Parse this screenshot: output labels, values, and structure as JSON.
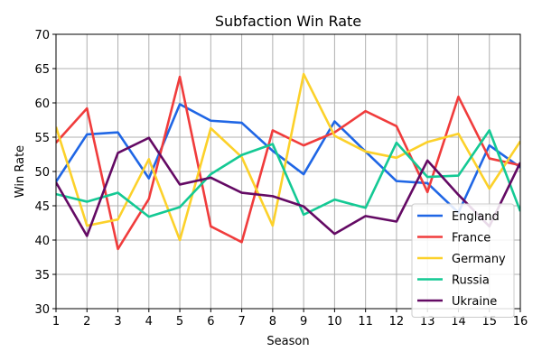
{
  "chart_data": {
    "type": "line",
    "title": "Subfaction Win Rate",
    "xlabel": "Season",
    "ylabel": "Win Rate",
    "xlim": [
      1,
      16
    ],
    "ylim": [
      30,
      70
    ],
    "x": [
      1,
      2,
      3,
      4,
      5,
      6,
      7,
      8,
      9,
      10,
      11,
      12,
      13,
      14,
      15,
      16
    ],
    "xticks": [
      "1",
      "2",
      "3",
      "4",
      "5",
      "6",
      "7",
      "8",
      "9",
      "10",
      "11",
      "12",
      "13",
      "14",
      "15",
      "16"
    ],
    "yticks": [
      30,
      35,
      40,
      45,
      50,
      55,
      60,
      65,
      70
    ],
    "ytick_labels": [
      "30",
      "35",
      "40",
      "45",
      "50",
      "55",
      "60",
      "65",
      "70"
    ],
    "grid": true,
    "legend_position": "lower-right",
    "series": [
      {
        "name": "England",
        "color": "#1f66e5",
        "values": [
          48.5,
          55.4,
          55.7,
          49.0,
          59.8,
          57.4,
          57.1,
          53.0,
          49.6,
          57.3,
          52.9,
          48.6,
          48.3,
          44.0,
          53.8,
          50.6
        ]
      },
      {
        "name": "France",
        "color": "#f03c3c",
        "values": [
          54.2,
          59.2,
          38.7,
          46.0,
          63.8,
          42.0,
          39.7,
          56.0,
          53.8,
          55.7,
          58.8,
          56.6,
          47.0,
          60.9,
          51.9,
          50.9
        ]
      },
      {
        "name": "Germany",
        "color": "#fcd12a",
        "values": [
          56.5,
          42.1,
          43.0,
          51.8,
          40.0,
          56.3,
          52.1,
          42.1,
          64.2,
          55.2,
          52.9,
          52.0,
          54.3,
          55.5,
          47.5,
          54.4
        ]
      },
      {
        "name": "Russia",
        "color": "#14c994",
        "values": [
          46.7,
          45.6,
          46.9,
          43.4,
          44.8,
          49.6,
          52.4,
          54.0,
          43.7,
          45.9,
          44.7,
          54.2,
          49.2,
          49.4,
          56.0,
          44.2
        ]
      },
      {
        "name": "Ukraine",
        "color": "#640a64",
        "values": [
          48.4,
          40.6,
          52.7,
          54.9,
          48.1,
          49.1,
          46.9,
          46.4,
          44.9,
          40.9,
          43.5,
          42.7,
          51.6,
          46.6,
          42.0,
          51.3
        ]
      }
    ]
  }
}
